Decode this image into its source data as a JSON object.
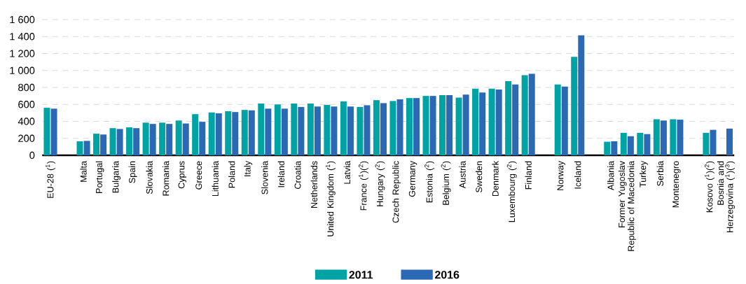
{
  "chart_data": {
    "type": "bar",
    "categories": [
      "EU-28 ($^{1}$)",
      null,
      "Malta",
      "Portugal",
      "Bulgaria",
      "Spain",
      "Slovakia",
      "Romania",
      "Cyprus",
      "Greece",
      "Lithuania",
      "Poland",
      "Italy",
      "Slovenia",
      "Ireland",
      "Croatia",
      "Netherlands",
      "United Kingdom ($^{1}$)",
      "Latvia",
      "France ($^{1}$)($^{2}$)",
      "Hungary ($^{2}$)",
      "Czech Republic",
      "Germany",
      "Estonia ($^{2}$)",
      "Belgium ($^{2}$)",
      "Austria",
      "Sweden",
      "Denmark",
      "Luxembourg ($^{2}$)",
      "Finland",
      null,
      "Norway",
      "Iceland",
      null,
      "Albania",
      "Former Yugoslav Republic of Macedonia",
      "Turkey",
      "Serbia",
      "Montenegro",
      null,
      "Kosovo ($^{1}$)($^{2}$)",
      "Bosnia and Herzegovina ($^{1}$)($^{3}$)"
    ],
    "series": [
      {
        "name": "2011",
        "color": "#00a3a3",
        "values": [
          560,
          null,
          165,
          255,
          320,
          330,
          385,
          385,
          410,
          485,
          505,
          520,
          535,
          610,
          600,
          610,
          610,
          595,
          635,
          570,
          650,
          640,
          675,
          700,
          710,
          680,
          785,
          785,
          875,
          945,
          null,
          835,
          1160,
          null,
          160,
          265,
          265,
          425,
          425,
          null,
          265,
          null
        ]
      },
      {
        "name": "2016",
        "color": "#2b69b4",
        "values": [
          550,
          null,
          170,
          245,
          310,
          320,
          370,
          370,
          375,
          395,
          495,
          510,
          530,
          550,
          550,
          570,
          575,
          575,
          575,
          590,
          615,
          660,
          675,
          700,
          710,
          715,
          740,
          775,
          835,
          960,
          null,
          810,
          1415,
          null,
          165,
          225,
          250,
          410,
          420,
          null,
          300,
          315
        ]
      }
    ],
    "ylim": [
      0,
      1600
    ],
    "yticks": [
      0,
      200,
      400,
      600,
      800,
      {
        "value": 1000,
        "label": "1 000"
      },
      {
        "value": 1200,
        "label": "1 200"
      },
      {
        "value": 1400,
        "label": "1 400"
      },
      {
        "value": 1600,
        "label": "1 600"
      }
    ],
    "grid": "y",
    "legend": "bottom"
  }
}
